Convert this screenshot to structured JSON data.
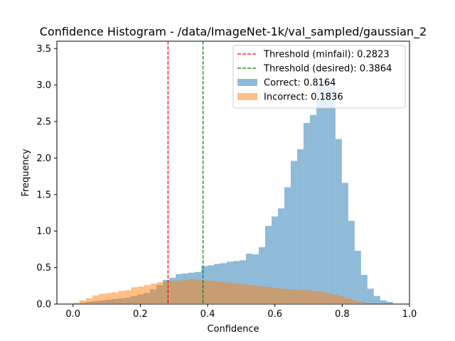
{
  "chart_data": {
    "type": "bar",
    "title": "Confidence Histogram - /data/ImageNet-1k/val_sampled/gaussian_2",
    "xlabel": "Confidence",
    "ylabel": "Frequency",
    "xlim": [
      -0.048,
      1.0
    ],
    "ylim": [
      0,
      3.6
    ],
    "xticks": [
      0.0,
      0.2,
      0.4,
      0.6,
      0.8,
      1.0
    ],
    "xtick_labels": [
      "0.0",
      "0.2",
      "0.4",
      "0.6",
      "0.8",
      "1.0"
    ],
    "yticks": [
      0.0,
      0.5,
      1.0,
      1.5,
      2.0,
      2.5,
      3.0,
      3.5
    ],
    "ytick_labels": [
      "0.0",
      "0.5",
      "1.0",
      "1.5",
      "2.0",
      "2.5",
      "3.0",
      "3.5"
    ],
    "grid": false,
    "legend_position": "top-right",
    "thresholds": [
      {
        "label": "Threshold (minfail): 0.2823",
        "x": 0.2823,
        "color": "#ff0000"
      },
      {
        "label": "Threshold (desired): 0.3864",
        "x": 0.3864,
        "color": "#008000"
      }
    ],
    "series": [
      {
        "name": "Correct: 0.8164",
        "color": "#1f77b4",
        "bins": [
          [
            0.02,
            0.039,
            0.02
          ],
          [
            0.039,
            0.058,
            0.03
          ],
          [
            0.058,
            0.077,
            0.04
          ],
          [
            0.077,
            0.096,
            0.05
          ],
          [
            0.096,
            0.115,
            0.06
          ],
          [
            0.115,
            0.134,
            0.07
          ],
          [
            0.134,
            0.153,
            0.08
          ],
          [
            0.153,
            0.172,
            0.09
          ],
          [
            0.172,
            0.191,
            0.11
          ],
          [
            0.191,
            0.21,
            0.13
          ],
          [
            0.21,
            0.229,
            0.15
          ],
          [
            0.229,
            0.248,
            0.2
          ],
          [
            0.248,
            0.267,
            0.26
          ],
          [
            0.267,
            0.286,
            0.33
          ],
          [
            0.286,
            0.305,
            0.36
          ],
          [
            0.305,
            0.324,
            0.41
          ],
          [
            0.324,
            0.343,
            0.42
          ],
          [
            0.343,
            0.362,
            0.43
          ],
          [
            0.362,
            0.381,
            0.44
          ],
          [
            0.381,
            0.4,
            0.52
          ],
          [
            0.4,
            0.419,
            0.53
          ],
          [
            0.419,
            0.438,
            0.55
          ],
          [
            0.438,
            0.457,
            0.56
          ],
          [
            0.457,
            0.476,
            0.58
          ],
          [
            0.476,
            0.495,
            0.59
          ],
          [
            0.495,
            0.514,
            0.6
          ],
          [
            0.514,
            0.533,
            0.69
          ],
          [
            0.533,
            0.552,
            0.68
          ],
          [
            0.552,
            0.571,
            0.78
          ],
          [
            0.571,
            0.59,
            1.07
          ],
          [
            0.59,
            0.609,
            1.2
          ],
          [
            0.609,
            0.628,
            1.31
          ],
          [
            0.628,
            0.647,
            1.6
          ],
          [
            0.647,
            0.666,
            1.96
          ],
          [
            0.666,
            0.685,
            2.12
          ],
          [
            0.685,
            0.704,
            2.48
          ],
          [
            0.704,
            0.723,
            2.59
          ],
          [
            0.723,
            0.742,
            3.03
          ],
          [
            0.742,
            0.761,
            3.07
          ],
          [
            0.761,
            0.78,
            2.97
          ],
          [
            0.78,
            0.799,
            2.26
          ],
          [
            0.799,
            0.818,
            1.66
          ],
          [
            0.818,
            0.837,
            1.14
          ],
          [
            0.837,
            0.856,
            0.73
          ],
          [
            0.856,
            0.875,
            0.4
          ],
          [
            0.875,
            0.894,
            0.21
          ],
          [
            0.894,
            0.913,
            0.11
          ],
          [
            0.913,
            0.932,
            0.05
          ],
          [
            0.932,
            0.951,
            0.03
          ]
        ]
      },
      {
        "name": "Incorrect: 0.1836",
        "color": "#ff7f0e",
        "bins": [
          [
            0.0,
            0.0192,
            0.02
          ],
          [
            0.0192,
            0.0384,
            0.05
          ],
          [
            0.0384,
            0.0576,
            0.08
          ],
          [
            0.0576,
            0.0768,
            0.12
          ],
          [
            0.0768,
            0.096,
            0.14
          ],
          [
            0.096,
            0.1152,
            0.15
          ],
          [
            0.1152,
            0.1344,
            0.16
          ],
          [
            0.1344,
            0.1536,
            0.18
          ],
          [
            0.1536,
            0.1728,
            0.19
          ],
          [
            0.1728,
            0.192,
            0.23
          ],
          [
            0.192,
            0.2112,
            0.24
          ],
          [
            0.2112,
            0.2304,
            0.26
          ],
          [
            0.2304,
            0.2496,
            0.28
          ],
          [
            0.2496,
            0.2688,
            0.3
          ],
          [
            0.2688,
            0.288,
            0.31
          ],
          [
            0.288,
            0.3072,
            0.32
          ],
          [
            0.3072,
            0.3264,
            0.32
          ],
          [
            0.3264,
            0.3456,
            0.33
          ],
          [
            0.3456,
            0.3648,
            0.34
          ],
          [
            0.3648,
            0.384,
            0.33
          ],
          [
            0.384,
            0.4032,
            0.32
          ],
          [
            0.4032,
            0.4224,
            0.32
          ],
          [
            0.4224,
            0.4416,
            0.31
          ],
          [
            0.4416,
            0.4608,
            0.3
          ],
          [
            0.4608,
            0.48,
            0.29
          ],
          [
            0.48,
            0.4992,
            0.28
          ],
          [
            0.4992,
            0.5184,
            0.27
          ],
          [
            0.5184,
            0.5376,
            0.26
          ],
          [
            0.5376,
            0.5568,
            0.25
          ],
          [
            0.5568,
            0.576,
            0.24
          ],
          [
            0.576,
            0.5952,
            0.23
          ],
          [
            0.5952,
            0.6144,
            0.22
          ],
          [
            0.6144,
            0.6336,
            0.21
          ],
          [
            0.6336,
            0.6528,
            0.2
          ],
          [
            0.6528,
            0.672,
            0.2
          ],
          [
            0.672,
            0.6912,
            0.19
          ],
          [
            0.6912,
            0.7104,
            0.19
          ],
          [
            0.7104,
            0.7296,
            0.18
          ],
          [
            0.7296,
            0.7488,
            0.17
          ],
          [
            0.7488,
            0.768,
            0.15
          ],
          [
            0.768,
            0.7872,
            0.13
          ],
          [
            0.7872,
            0.8064,
            0.11
          ],
          [
            0.8064,
            0.8256,
            0.08
          ],
          [
            0.8256,
            0.8448,
            0.05
          ],
          [
            0.8448,
            0.864,
            0.03
          ]
        ]
      }
    ]
  }
}
